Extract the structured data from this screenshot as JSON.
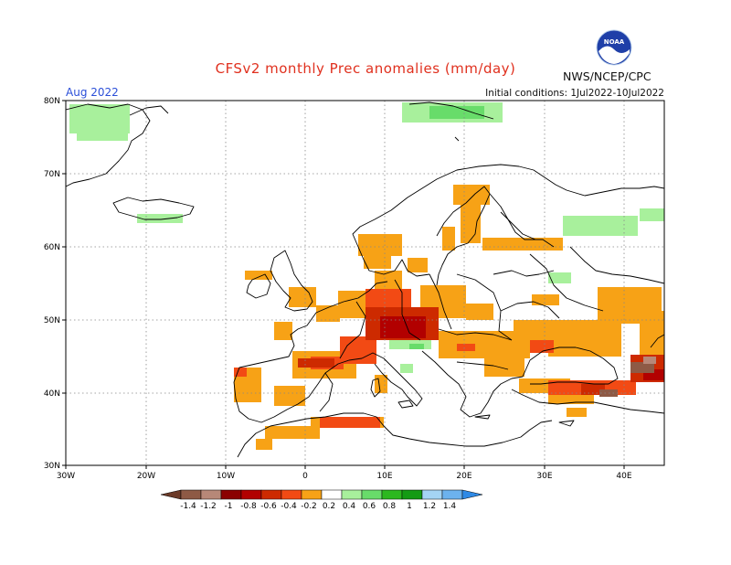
{
  "header": {
    "title": "CFSv2 monthly Prec anomalies (mm/day)",
    "agency": "NWS/NCEP/CPC",
    "logo_text": "NOAA",
    "valid_month": "Aug 2022",
    "initial_conditions": "Initial conditions: 1Jul2022-10Jul2022"
  },
  "axes": {
    "lat_labels": [
      "80N",
      "70N",
      "60N",
      "50N",
      "40N",
      "30N"
    ],
    "lon_labels": [
      "30W",
      "20W",
      "10W",
      "0",
      "10E",
      "20E",
      "30E",
      "40E"
    ]
  },
  "legend": {
    "ticks": [
      "-1.4",
      "-1.2",
      "-1",
      "-0.8",
      "-0.6",
      "-0.4",
      "-0.2",
      "0.2",
      "0.4",
      "0.6",
      "0.8",
      "1",
      "1.2",
      "1.4"
    ],
    "colors": [
      "#6b3a28",
      "#8e5a45",
      "#b78878",
      "#8b0000",
      "#b20000",
      "#cd2a00",
      "#f24a14",
      "#f7a216",
      "#ffffff",
      "#a8f09c",
      "#68dc6a",
      "#2cb81f",
      "#149b14",
      "#a4d4f4",
      "#6cb2ee",
      "#2f8ae6"
    ]
  }
}
